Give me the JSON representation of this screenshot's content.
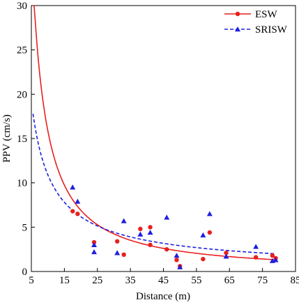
{
  "chart_data": {
    "type": "scatter",
    "xlabel": "Distance (m)",
    "ylabel": "PPV (cm/s)",
    "xlim": [
      5,
      85
    ],
    "ylim": [
      0,
      30
    ],
    "xticks": [
      5,
      15,
      25,
      35,
      45,
      55,
      65,
      75,
      85
    ],
    "yticks": [
      0,
      5,
      10,
      15,
      20,
      25,
      30
    ],
    "legend_position": "top-right",
    "grid": false,
    "series": [
      {
        "name": "ESW",
        "color": "#e8201e",
        "marker": "circle",
        "line_style": "solid",
        "points": [
          {
            "x": 17.5,
            "y": 6.8
          },
          {
            "x": 19,
            "y": 6.5
          },
          {
            "x": 24,
            "y": 3.3
          },
          {
            "x": 31,
            "y": 3.4
          },
          {
            "x": 33,
            "y": 1.9
          },
          {
            "x": 38,
            "y": 4.8
          },
          {
            "x": 41,
            "y": 5.0
          },
          {
            "x": 41,
            "y": 3.0
          },
          {
            "x": 46,
            "y": 2.5
          },
          {
            "x": 49,
            "y": 1.3
          },
          {
            "x": 50,
            "y": 0.6
          },
          {
            "x": 57,
            "y": 1.4
          },
          {
            "x": 59,
            "y": 4.4
          },
          {
            "x": 64,
            "y": 2.1
          },
          {
            "x": 73,
            "y": 1.6
          },
          {
            "x": 78,
            "y": 1.8
          },
          {
            "x": 79,
            "y": 1.5
          }
        ],
        "fit": {
          "k": 251.2,
          "b": 1.2,
          "from": 5.5,
          "to": 79
        }
      },
      {
        "name": "SRISW",
        "color": "#1f1fe0",
        "marker": "triangle",
        "line_style": "dashed",
        "points": [
          {
            "x": 17.5,
            "y": 9.5
          },
          {
            "x": 19,
            "y": 7.9
          },
          {
            "x": 24,
            "y": 2.2
          },
          {
            "x": 24,
            "y": 3.0
          },
          {
            "x": 31,
            "y": 2.1
          },
          {
            "x": 33,
            "y": 5.7
          },
          {
            "x": 38,
            "y": 4.2
          },
          {
            "x": 41,
            "y": 4.4
          },
          {
            "x": 46,
            "y": 6.1
          },
          {
            "x": 49,
            "y": 1.8
          },
          {
            "x": 50,
            "y": 0.5
          },
          {
            "x": 57,
            "y": 4.1
          },
          {
            "x": 59,
            "y": 6.5
          },
          {
            "x": 64,
            "y": 1.7
          },
          {
            "x": 73,
            "y": 2.8
          },
          {
            "x": 78,
            "y": 1.2
          },
          {
            "x": 79,
            "y": 1.3
          }
        ],
        "fit": {
          "k": 72.0,
          "b": 0.82,
          "from": 5.5,
          "to": 79
        }
      }
    ]
  }
}
